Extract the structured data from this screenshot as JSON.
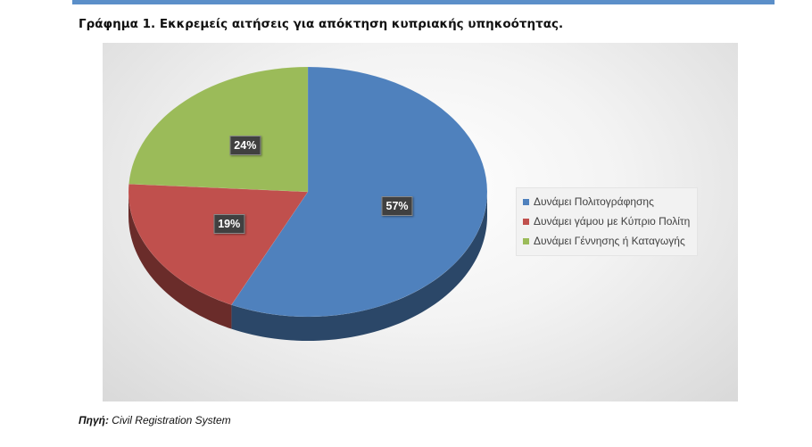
{
  "page": {
    "title": "Γράφημα 1. Εκκρεμείς αιτήσεις για απόκτηση κυπριακής υπηκοότητας.",
    "source_label": "Πηγή:",
    "source_value": "Civil Registration System"
  },
  "chart_data": {
    "type": "pie",
    "style": "3d",
    "legend_position": "right",
    "categories": [
      "Δυνάμει Πολιτογράφησης",
      "Δυνάμει γάμου με Κύπριο Πολίτη",
      "Δυνάμει Γέννησης ή Καταγωγής"
    ],
    "values": [
      57,
      19,
      24
    ],
    "labels": [
      "57%",
      "19%",
      "24%"
    ],
    "colors": [
      "#4f81bd",
      "#c0504d",
      "#9bbb59"
    ]
  }
}
